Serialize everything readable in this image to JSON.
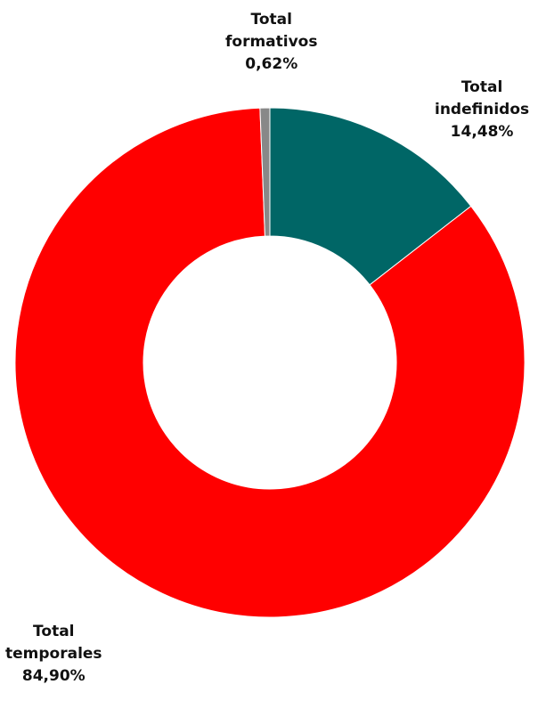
{
  "chart_data": {
    "type": "pie",
    "donut": true,
    "categories": [
      "Total indefinidos",
      "Total temporales",
      "Total formativos"
    ],
    "values": [
      14.48,
      84.9,
      0.62
    ],
    "value_labels": [
      "14,48%",
      "84,90%",
      "0,62%"
    ],
    "colors": [
      "#006666",
      "#ff0000",
      "#888888"
    ],
    "legend": "none"
  },
  "labels": [
    {
      "lines": [
        "Total",
        "indefinidos"
      ],
      "value": "14,48%"
    },
    {
      "lines": [
        "Total",
        "temporales"
      ],
      "value": "84,90%"
    },
    {
      "lines": [
        "Total",
        "formativos"
      ],
      "value": "0,62%"
    }
  ]
}
